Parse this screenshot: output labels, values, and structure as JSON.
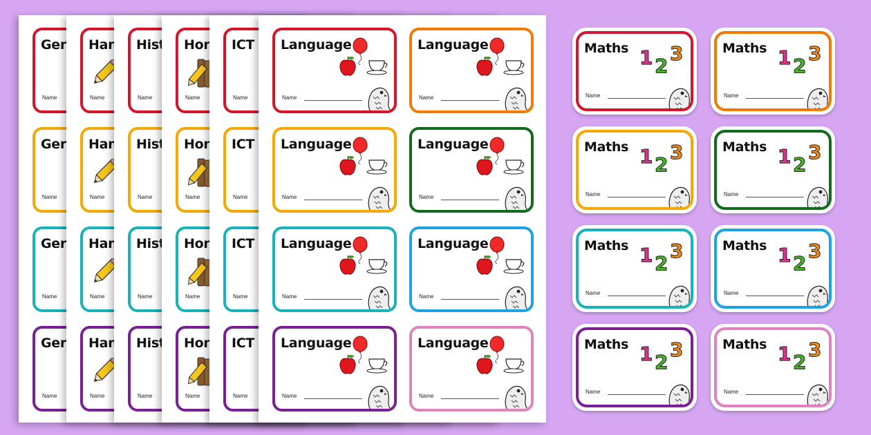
{
  "colors": {
    "background": "#d6a6f3",
    "rows_left": [
      "#d7152a",
      "#f6a800",
      "#17b3bb",
      "#7a1f94"
    ],
    "column_right": [
      "#f07b00",
      "#116b1c",
      "#1ba3e4",
      "#e082c0"
    ]
  },
  "back_sheets": [
    {
      "title": "Ger",
      "icon": "none",
      "name_label": "Name"
    },
    {
      "title": "Han",
      "icon": "pencil-icon",
      "name_label": "Name"
    },
    {
      "title": "Hist",
      "icon": "none",
      "name_label": "Name"
    },
    {
      "title": "Hon",
      "icon": "books-pencil-icon",
      "name_label": "Name"
    },
    {
      "title": "ICT",
      "icon": "none",
      "name_label": "Name"
    }
  ],
  "front_sheet": {
    "title": "Language",
    "name_label": "Name",
    "icons": [
      "balloon-icon",
      "apple-icon",
      "teacup-icon",
      "owl-icon"
    ]
  },
  "stickers": {
    "title": "Maths",
    "digits": [
      "1",
      "2",
      "3"
    ],
    "digit_colors": [
      "#e0338f",
      "#46b526",
      "#f08a14"
    ],
    "name_label": "Name",
    "icons": [
      "numbers-123-icon",
      "owl-icon"
    ]
  }
}
